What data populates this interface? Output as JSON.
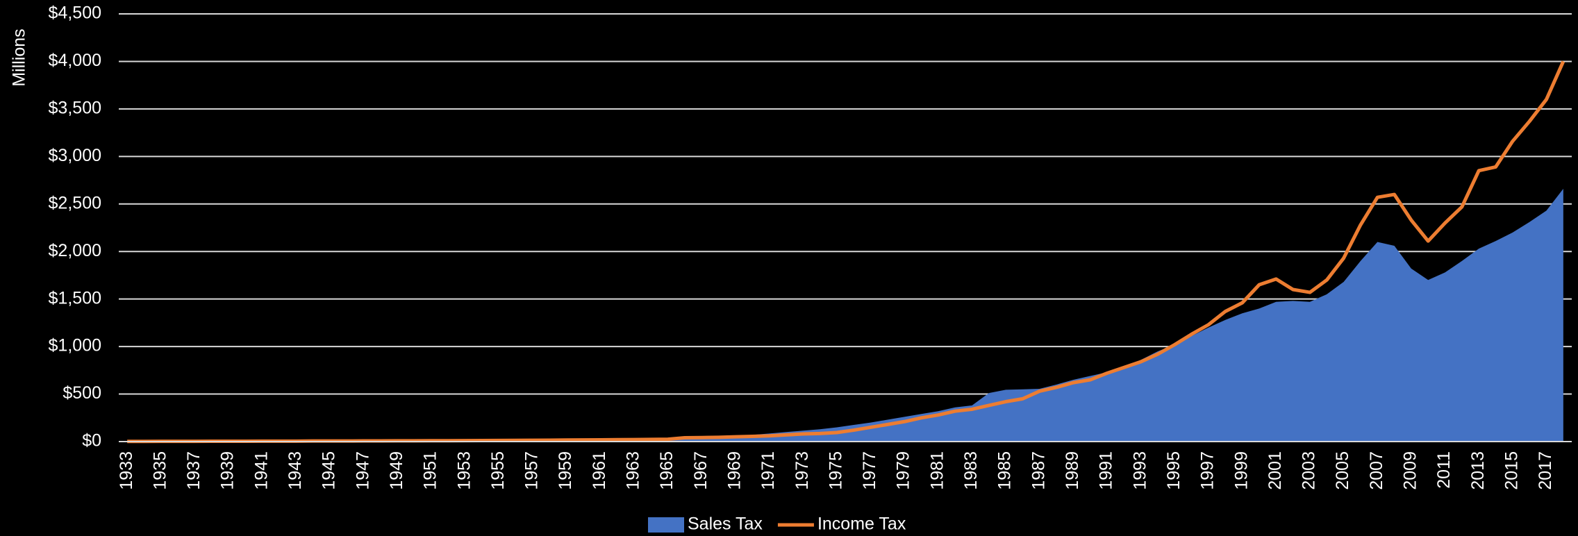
{
  "chart_data": {
    "type": "area-line",
    "y_label": "Millions",
    "categories": [
      "1933",
      null,
      "1935",
      null,
      "1937",
      null,
      "1939",
      null,
      "1941",
      null,
      "1943",
      null,
      "1945",
      null,
      "1947",
      null,
      "1949",
      null,
      "1951",
      null,
      "1953",
      null,
      "1955",
      null,
      "1957",
      null,
      "1959",
      null,
      "1961",
      null,
      "1963",
      null,
      "1965",
      null,
      "1967",
      null,
      "1969",
      null,
      "1971",
      null,
      "1973",
      null,
      "1975",
      null,
      "1977",
      null,
      "1979",
      null,
      "1981",
      null,
      "1983",
      null,
      "1985",
      null,
      "1987",
      null,
      "1989",
      null,
      "1991",
      null,
      "1993",
      null,
      "1995",
      null,
      "1997",
      null,
      "1999",
      null,
      "2001",
      null,
      "2003",
      null,
      "2005",
      null,
      "2007",
      null,
      "2009",
      null,
      "2011",
      null,
      "2013",
      null,
      "2015",
      null,
      "2017",
      null
    ],
    "series": [
      {
        "name": "Sales Tax",
        "color": "#4472c4",
        "kind": "area",
        "values": [
          3,
          4,
          4,
          5,
          5,
          6,
          6,
          7,
          7,
          8,
          8,
          9,
          9,
          10,
          10,
          11,
          12,
          12,
          13,
          14,
          15,
          16,
          17,
          18,
          19,
          20,
          21,
          22,
          23,
          25,
          26,
          28,
          30,
          35,
          40,
          45,
          55,
          70,
          85,
          100,
          115,
          130,
          150,
          175,
          200,
          230,
          260,
          290,
          320,
          360,
          380,
          510,
          545,
          550,
          555,
          600,
          650,
          690,
          730,
          780,
          860,
          950,
          1020,
          1110,
          1200,
          1280,
          1350,
          1400,
          1470,
          1480,
          1470,
          1550,
          1680,
          1900,
          2100,
          2060,
          1820,
          1700,
          1780,
          1900,
          2030,
          2110,
          2200,
          2310,
          2430,
          2660
        ]
      },
      {
        "name": "Income Tax",
        "color": "#ed7d31",
        "kind": "line",
        "values": [
          2,
          2,
          3,
          3,
          3,
          4,
          4,
          4,
          5,
          5,
          5,
          6,
          6,
          6,
          7,
          7,
          8,
          8,
          9,
          9,
          10,
          11,
          12,
          13,
          14,
          15,
          16,
          17,
          18,
          20,
          21,
          23,
          25,
          40,
          42,
          45,
          50,
          55,
          60,
          70,
          80,
          85,
          95,
          120,
          150,
          180,
          210,
          250,
          280,
          320,
          340,
          380,
          420,
          450,
          530,
          570,
          620,
          650,
          720,
          780,
          840,
          920,
          1020,
          1130,
          1230,
          1370,
          1460,
          1650,
          1710,
          1600,
          1570,
          1700,
          1930,
          2280,
          2570,
          2600,
          2330,
          2110,
          2300,
          2470,
          2850,
          2890,
          3160,
          3370,
          3600,
          4000
        ]
      }
    ],
    "ylim": [
      0,
      4500
    ],
    "yticks": [
      {
        "value": 0,
        "label": "$0"
      },
      {
        "value": 500,
        "label": "$500"
      },
      {
        "value": 1000,
        "label": "$1,000"
      },
      {
        "value": 1500,
        "label": "$1,500"
      },
      {
        "value": 2000,
        "label": "$2,000"
      },
      {
        "value": 2500,
        "label": "$2,500"
      },
      {
        "value": 3000,
        "label": "$3,000"
      },
      {
        "value": 3500,
        "label": "$3,500"
      },
      {
        "value": 4000,
        "label": "$4,000"
      },
      {
        "value": 4500,
        "label": "$4,500"
      }
    ],
    "grid": true,
    "legend": "bottom"
  }
}
